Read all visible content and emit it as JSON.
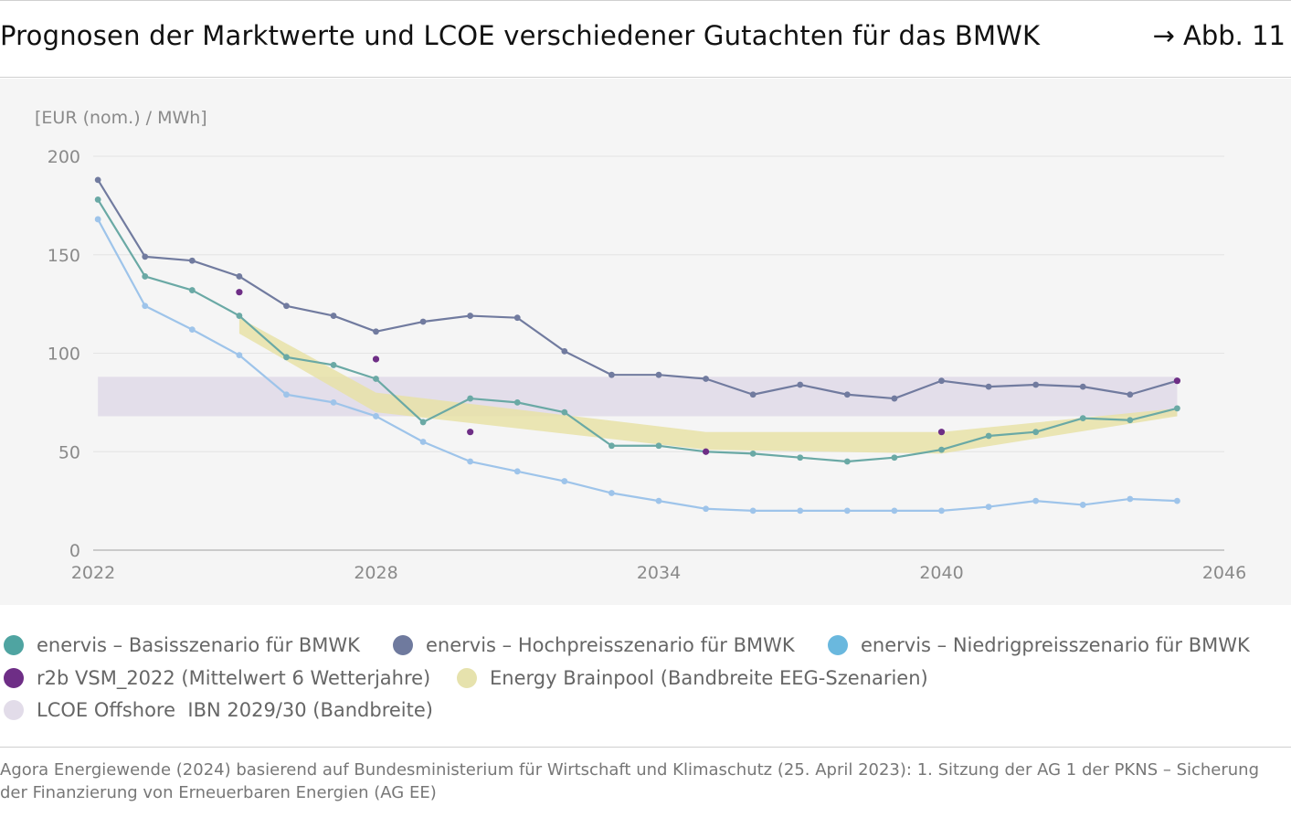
{
  "header": {
    "title": "Prognosen der Marktwerte und LCOE verschiedener Gutachten für das BMWK",
    "figure_ref": "→ Abb. 11"
  },
  "chart_data": {
    "type": "line",
    "title": "Prognosen der Marktwerte und LCOE verschiedener Gutachten für das BMWK",
    "ylabel": "[EUR (nom.) / MWh]",
    "xlabel": "",
    "xlim": [
      2022,
      2046
    ],
    "ylim": [
      0,
      200
    ],
    "x_ticks": [
      "2022",
      "2028",
      "2034",
      "2040",
      "2046"
    ],
    "y_ticks": [
      "0",
      "50",
      "100",
      "150",
      "200"
    ],
    "grid": "horizontal",
    "legend_position": "bottom",
    "series": [
      {
        "name": "enervis – Basisszenario für BMWK",
        "kind": "line",
        "color": "#6aa9a5",
        "x": [
          2022.1,
          2023.1,
          2024.1,
          2025.1,
          2026.1,
          2027.1,
          2028.0,
          2029.0,
          2030.0,
          2031.0,
          2032.0,
          2033.0,
          2034.0,
          2035.0,
          2036.0,
          2037.0,
          2038.0,
          2039.0,
          2040.0,
          2041.0,
          2042.0,
          2043.0,
          2044.0,
          2045.0
        ],
        "values": [
          178,
          139,
          132,
          119,
          98,
          94,
          87,
          65,
          77,
          75,
          70,
          53,
          53,
          50,
          49,
          47,
          45,
          47,
          51,
          58,
          60,
          67,
          66,
          72
        ]
      },
      {
        "name": "enervis – Hochpreisszenario für BMWK",
        "kind": "line",
        "color": "#717b9f",
        "x": [
          2022.1,
          2023.1,
          2024.1,
          2025.1,
          2026.1,
          2027.1,
          2028.0,
          2029.0,
          2030.0,
          2031.0,
          2032.0,
          2033.0,
          2034.0,
          2035.0,
          2036.0,
          2037.0,
          2038.0,
          2039.0,
          2040.0,
          2041.0,
          2042.0,
          2043.0,
          2044.0,
          2045.0
        ],
        "values": [
          188,
          149,
          147,
          139,
          124,
          119,
          111,
          116,
          119,
          118,
          101,
          89,
          89,
          87,
          79,
          84,
          79,
          77,
          86,
          83,
          84,
          83,
          79,
          86
        ]
      },
      {
        "name": "enervis – Niedrigpreisszenario für BMWK",
        "kind": "line",
        "color": "#9ec4ea",
        "x": [
          2022.1,
          2023.1,
          2024.1,
          2025.1,
          2026.1,
          2027.1,
          2028.0,
          2029.0,
          2030.0,
          2031.0,
          2032.0,
          2033.0,
          2034.0,
          2035.0,
          2036.0,
          2037.0,
          2038.0,
          2039.0,
          2040.0,
          2041.0,
          2042.0,
          2043.0,
          2044.0,
          2045.0
        ],
        "values": [
          168,
          124,
          112,
          99,
          79,
          75,
          68,
          55,
          45,
          40,
          35,
          29,
          25,
          21,
          20,
          20,
          20,
          20,
          20,
          22,
          25,
          23,
          26,
          25
        ]
      },
      {
        "name": "r2b VSM_2022 (Mittelwert 6 Wetterjahre)",
        "kind": "points",
        "color": "#6e2e86",
        "x": [
          2025.1,
          2028.0,
          2030.0,
          2035.0,
          2040.0,
          2045.0
        ],
        "values": [
          131,
          97,
          60,
          50,
          60,
          86
        ]
      },
      {
        "name": "Energy Brainpool (Bandbreite EEG-Szenarien)",
        "kind": "band",
        "color": "#e8e2a7",
        "x": [
          2025.1,
          2028.0,
          2035.0,
          2040.0,
          2045.0
        ],
        "low": [
          110,
          70,
          51,
          49,
          68
        ],
        "high": [
          118,
          80,
          60,
          60,
          72
        ]
      },
      {
        "name": "LCOE Offshore  IBN 2029/30 (Bandbreite)",
        "kind": "band",
        "color": "#e2dce9",
        "x": [
          2022.1,
          2045.0
        ],
        "low": [
          68,
          68
        ],
        "high": [
          88,
          88
        ]
      }
    ]
  },
  "legend": {
    "items": [
      {
        "label": "enervis – Basisszenario für BMWK",
        "color": "#4fa4a1"
      },
      {
        "label": "enervis – Hochpreisszenario für BMWK",
        "color": "#6f7a9e"
      },
      {
        "label": "enervis – Niedrigpreisszenario für BMWK",
        "color": "#6ab8de"
      },
      {
        "label": "r2b VSM_2022 (Mittelwert 6 Wetterjahre)",
        "color": "#6e2e86"
      },
      {
        "label": "Energy Brainpool (Bandbreite EEG-Szenarien)",
        "color": "#e6e2ad"
      },
      {
        "label": "LCOE Offshore  IBN 2029/30 (Bandbreite)",
        "color": "#e2dce9"
      }
    ]
  },
  "source": {
    "text": "Agora Energiewende (2024) basierend auf Bundesministerium für Wirtschaft und Klimaschutz (25. April 2023): 1. Sitzung der AG 1 der PKNS – Sicherung der Finanzierung von Erneuerbaren Energien (AG EE)"
  }
}
